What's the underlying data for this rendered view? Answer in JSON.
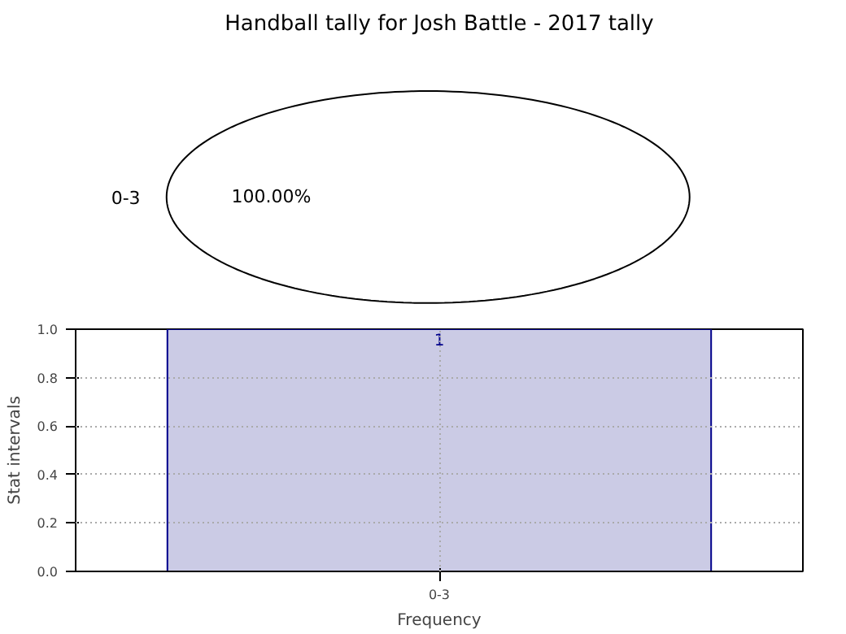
{
  "chart_data": [
    {
      "type": "pie",
      "title": "Handball tally for Josh Battle - 2017 tally",
      "categories": [
        "0-3"
      ],
      "values": [
        100
      ],
      "colors": [
        "#ffffff"
      ],
      "value_labels": [
        "100.00%"
      ]
    },
    {
      "type": "bar",
      "categories": [
        "0-3"
      ],
      "values": [
        1
      ],
      "color": "#cbcbe5",
      "ylim": [
        0,
        1
      ],
      "yticks": [
        {
          "value": 0,
          "label": "0.0"
        },
        {
          "value": 0.2,
          "label": "0.2"
        },
        {
          "value": 0.4,
          "label": "0.4"
        },
        {
          "value": 0.6,
          "label": "0.6"
        },
        {
          "value": 0.8,
          "label": "0.8"
        },
        {
          "value": 1,
          "label": "1.0"
        }
      ],
      "grid": true,
      "data_labels": true,
      "xlabel": "Frequency",
      "ylabel": "Stat intervals"
    }
  ]
}
